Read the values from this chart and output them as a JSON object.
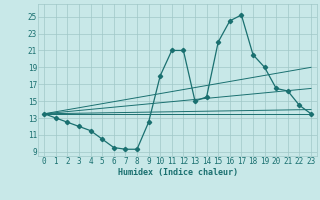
{
  "background_color": "#c8e8e8",
  "grid_color": "#a0c8c8",
  "line_color": "#1a7070",
  "xlabel": "Humidex (Indice chaleur)",
  "xlim": [
    -0.5,
    23.5
  ],
  "ylim": [
    8.5,
    26.5
  ],
  "yticks": [
    9,
    11,
    13,
    15,
    17,
    19,
    21,
    23,
    25
  ],
  "xticks": [
    0,
    1,
    2,
    3,
    4,
    5,
    6,
    7,
    8,
    9,
    10,
    11,
    12,
    13,
    14,
    15,
    16,
    17,
    18,
    19,
    20,
    21,
    22,
    23
  ],
  "main_x": [
    0,
    1,
    2,
    3,
    4,
    5,
    6,
    7,
    8,
    9,
    10,
    11,
    12,
    13,
    14,
    15,
    16,
    17,
    18,
    19,
    20,
    21,
    22,
    23
  ],
  "main_y": [
    13.5,
    13.0,
    12.5,
    12.0,
    11.5,
    10.5,
    9.5,
    9.3,
    9.3,
    12.5,
    18.0,
    21.0,
    21.0,
    15.0,
    15.5,
    22.0,
    24.5,
    25.2,
    20.5,
    19.0,
    16.5,
    16.2,
    14.5,
    13.5
  ],
  "trend1_x": [
    0,
    23
  ],
  "trend1_y": [
    13.5,
    13.5
  ],
  "trend2_x": [
    0,
    23
  ],
  "trend2_y": [
    13.5,
    19.0
  ],
  "trend3_x": [
    0,
    23
  ],
  "trend3_y": [
    13.5,
    16.5
  ],
  "trend4_x": [
    0,
    23
  ],
  "trend4_y": [
    13.5,
    14.0
  ]
}
